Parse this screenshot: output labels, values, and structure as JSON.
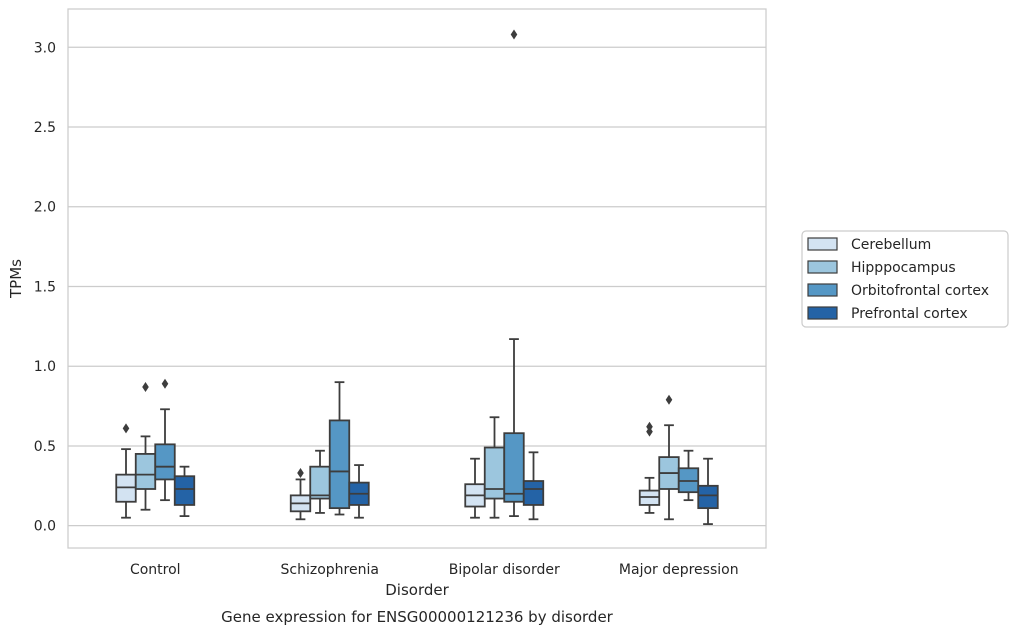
{
  "caption": "Gene expression for ENSG00000121236 by disorder",
  "chart_data": {
    "type": "box",
    "xlabel": "Disorder",
    "ylabel": "TPMs",
    "ylim": [
      -0.14,
      3.24
    ],
    "yticks": [
      "0.0",
      "0.5",
      "1.0",
      "1.5",
      "2.0",
      "2.5",
      "3.0"
    ],
    "grid": "horizontal",
    "legend_position": "right",
    "categories": [
      "Control",
      "Schizophrenia",
      "Bipolar disorder",
      "Major depression"
    ],
    "series": [
      {
        "name": "Cerebellum",
        "color": "#d3e3f2",
        "boxes": [
          {
            "whislo": 0.05,
            "q1": 0.15,
            "med": 0.24,
            "q3": 0.32,
            "whishi": 0.48,
            "fliers": [
              0.61
            ]
          },
          {
            "whislo": 0.04,
            "q1": 0.09,
            "med": 0.14,
            "q3": 0.19,
            "whishi": 0.29,
            "fliers": [
              0.33
            ]
          },
          {
            "whislo": 0.05,
            "q1": 0.12,
            "med": 0.19,
            "q3": 0.26,
            "whishi": 0.42,
            "fliers": []
          },
          {
            "whislo": 0.08,
            "q1": 0.13,
            "med": 0.18,
            "q3": 0.22,
            "whishi": 0.3,
            "fliers": [
              0.59,
              0.62
            ]
          }
        ]
      },
      {
        "name": "Hipppocampus",
        "color": "#9cc6de",
        "boxes": [
          {
            "whislo": 0.1,
            "q1": 0.23,
            "med": 0.32,
            "q3": 0.45,
            "whishi": 0.56,
            "fliers": [
              0.87
            ]
          },
          {
            "whislo": 0.08,
            "q1": 0.17,
            "med": 0.19,
            "q3": 0.37,
            "whishi": 0.47,
            "fliers": []
          },
          {
            "whislo": 0.05,
            "q1": 0.17,
            "med": 0.23,
            "q3": 0.49,
            "whishi": 0.68,
            "fliers": []
          },
          {
            "whislo": 0.04,
            "q1": 0.23,
            "med": 0.33,
            "q3": 0.43,
            "whishi": 0.63,
            "fliers": [
              0.79
            ]
          }
        ]
      },
      {
        "name": "Orbitofrontal cortex",
        "color": "#5597c5",
        "boxes": [
          {
            "whislo": 0.16,
            "q1": 0.29,
            "med": 0.37,
            "q3": 0.51,
            "whishi": 0.73,
            "fliers": [
              0.89
            ]
          },
          {
            "whislo": 0.07,
            "q1": 0.11,
            "med": 0.34,
            "q3": 0.66,
            "whishi": 0.9,
            "fliers": []
          },
          {
            "whislo": 0.06,
            "q1": 0.15,
            "med": 0.2,
            "q3": 0.58,
            "whishi": 1.17,
            "fliers": [
              3.08
            ]
          },
          {
            "whislo": 0.16,
            "q1": 0.21,
            "med": 0.28,
            "q3": 0.36,
            "whishi": 0.47,
            "fliers": []
          }
        ]
      },
      {
        "name": "Prefrontal cortex",
        "color": "#2463a6",
        "boxes": [
          {
            "whislo": 0.06,
            "q1": 0.13,
            "med": 0.23,
            "q3": 0.31,
            "whishi": 0.37,
            "fliers": []
          },
          {
            "whislo": 0.05,
            "q1": 0.13,
            "med": 0.2,
            "q3": 0.27,
            "whishi": 0.38,
            "fliers": []
          },
          {
            "whislo": 0.04,
            "q1": 0.13,
            "med": 0.23,
            "q3": 0.28,
            "whishi": 0.46,
            "fliers": []
          },
          {
            "whislo": 0.01,
            "q1": 0.11,
            "med": 0.19,
            "q3": 0.25,
            "whishi": 0.42,
            "fliers": []
          }
        ]
      }
    ]
  }
}
